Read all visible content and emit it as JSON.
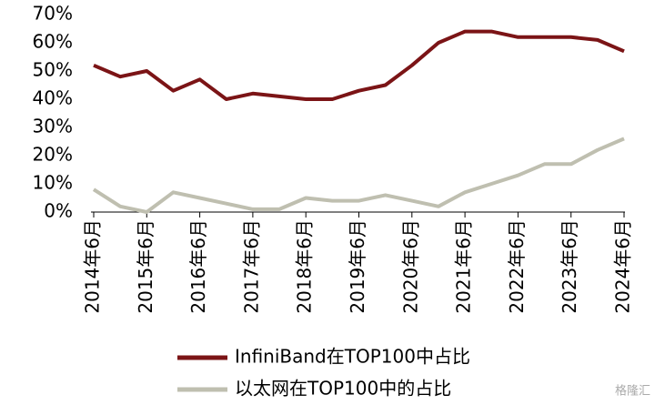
{
  "chart_data": {
    "type": "line",
    "categories": [
      "2014年6月",
      null,
      "2015年6月",
      null,
      "2016年6月",
      null,
      "2017年6月",
      null,
      "2018年6月",
      null,
      "2019年6月",
      null,
      "2020年6月",
      null,
      "2021年6月",
      null,
      "2022年6月",
      null,
      "2023年6月",
      null,
      "2024年6月"
    ],
    "series": [
      {
        "name": "InfiniBand在TOP100中占比",
        "color": "#7b1416",
        "values": [
          52,
          48,
          50,
          43,
          47,
          40,
          42,
          41,
          40,
          40,
          43,
          45,
          52,
          60,
          64,
          64,
          62,
          62,
          62,
          61,
          57
        ]
      },
      {
        "name": "以太网在TOP100中的占比",
        "color": "#bfbfb0",
        "values": [
          8,
          2,
          0,
          7,
          5,
          3,
          1,
          1,
          5,
          4,
          4,
          6,
          4,
          2,
          7,
          10,
          13,
          17,
          17,
          22,
          26
        ]
      }
    ],
    "ylim": [
      0,
      70
    ],
    "yticks": [
      {
        "value": 0,
        "label": "0%"
      },
      {
        "value": 10,
        "label": "10%"
      },
      {
        "value": 20,
        "label": "20%"
      },
      {
        "value": 30,
        "label": "30%"
      },
      {
        "value": 40,
        "label": "40%"
      },
      {
        "value": 50,
        "label": "50%"
      },
      {
        "value": 60,
        "label": "60%"
      },
      {
        "value": 70,
        "label": "70%"
      }
    ],
    "legend": "bottom",
    "watermark": "格隆汇"
  }
}
